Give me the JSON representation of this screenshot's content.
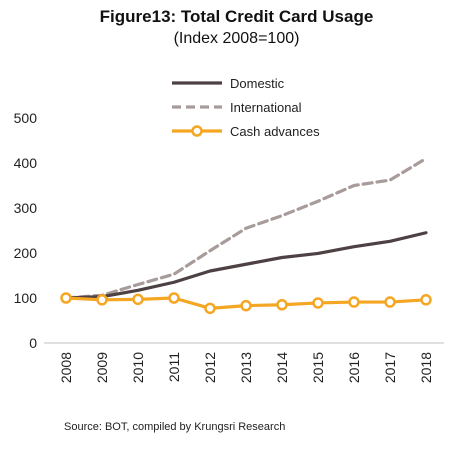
{
  "chart_data": {
    "type": "line",
    "title": "Figure13: Total Credit Card Usage",
    "subtitle": "(Index 2008=100)",
    "xlabel": "",
    "ylabel": "",
    "ylim": [
      0,
      500
    ],
    "yticks": [
      0,
      100,
      200,
      300,
      400,
      500
    ],
    "grid": false,
    "legend_position": "top-center",
    "categories": [
      "2008",
      "2009",
      "2010",
      "2011",
      "2012",
      "2013",
      "2014",
      "2015",
      "2016",
      "2017",
      "2018"
    ],
    "series": [
      {
        "name": "Domestic",
        "color": "#4d4143",
        "style": "solid",
        "marker": "none",
        "values": [
          100,
          103,
          117,
          135,
          160,
          175,
          190,
          199,
          214,
          226,
          245
        ]
      },
      {
        "name": "International",
        "color": "#a89c9a",
        "style": "dashed",
        "marker": "none",
        "values": [
          100,
          106,
          130,
          153,
          205,
          255,
          283,
          315,
          350,
          362,
          410
        ]
      },
      {
        "name": "Cash advances",
        "color": "#f5a623",
        "style": "solid",
        "marker": "circle",
        "values": [
          100,
          96,
          97,
          100,
          77,
          83,
          85,
          89,
          91,
          91,
          96
        ]
      }
    ]
  },
  "source": "Source: BOT, compiled by Krungsri Research"
}
